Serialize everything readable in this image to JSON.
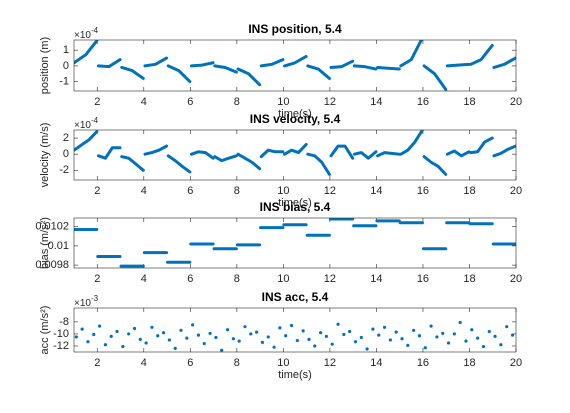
{
  "chart_data": [
    {
      "type": "line",
      "title": "INS position, 5.4",
      "xlabel": "time(s)",
      "ylabel": "position (m)",
      "multiplier": {
        "base": "×10",
        "power": "-4"
      },
      "color": "#0072bd",
      "xlim": [
        1,
        20
      ],
      "xticks": [
        2,
        4,
        6,
        8,
        10,
        12,
        14,
        16,
        18,
        20
      ],
      "ylim": [
        -1.6,
        1.65
      ],
      "yticks": [
        -1,
        0,
        1
      ],
      "x": [
        1,
        1.5,
        1.98,
        1.99,
        2.05,
        2.5,
        2.98,
        2.99,
        3.05,
        3.5,
        3.98,
        3.99,
        4.05,
        4.5,
        4.98,
        4.99,
        5.05,
        5.5,
        5.98,
        5.99,
        6.05,
        6.5,
        6.98,
        6.99,
        7.05,
        7.5,
        7.98,
        7.99,
        8.05,
        8.5,
        8.98,
        8.99,
        9.05,
        9.5,
        9.98,
        9.99,
        10.05,
        10.5,
        10.98,
        10.99,
        11.05,
        11.5,
        11.98,
        11.99,
        12.05,
        12.5,
        12.98,
        12.99,
        13.05,
        13.5,
        13.98,
        13.99,
        14.05,
        14.5,
        14.98,
        14.99,
        15.05,
        15.5,
        15.98,
        15.99,
        16.05,
        16.5,
        16.98,
        16.99,
        17.05,
        17.5,
        17.98,
        17.99,
        18.05,
        18.5,
        18.98,
        18.99,
        19.05,
        19.5,
        19.98
      ],
      "values": [
        0.2,
        0.7,
        1.6,
        null,
        0,
        -0.05,
        0.4,
        null,
        -0.1,
        -0.3,
        -0.8,
        null,
        0,
        0.1,
        0.5,
        null,
        0,
        -0.3,
        -1.0,
        null,
        0,
        0.05,
        0.2,
        null,
        0,
        -0.1,
        -0.4,
        null,
        -0.2,
        -0.5,
        -1.2,
        null,
        0,
        0.1,
        0.4,
        null,
        0,
        0.2,
        0.6,
        null,
        0,
        -0.2,
        -0.8,
        null,
        -0.1,
        -0.05,
        0.3,
        null,
        0,
        -0.05,
        -0.2,
        null,
        -0.1,
        -0.15,
        -0.2,
        null,
        0,
        0.4,
        1.8,
        null,
        0,
        -0.5,
        -1.5,
        null,
        0,
        0.05,
        0.1,
        null,
        0.1,
        0.4,
        1.3,
        null,
        -0.1,
        0.1,
        0.5
      ]
    },
    {
      "type": "line",
      "title": "INS velocity, 5.4",
      "xlabel": "time(s)",
      "ylabel": "velocity (m/s)",
      "multiplier": {
        "base": "×10",
        "power": "-4"
      },
      "color": "#0072bd",
      "xlim": [
        1,
        20
      ],
      "xticks": [
        2,
        4,
        6,
        8,
        10,
        12,
        14,
        16,
        18,
        20
      ],
      "ylim": [
        -3.2,
        3
      ],
      "yticks": [
        -2,
        0,
        2
      ],
      "x": [
        1,
        1.35,
        1.65,
        1.98,
        1.99,
        2.05,
        2.35,
        2.65,
        2.98,
        2.99,
        3.05,
        3.35,
        3.65,
        3.98,
        3.99,
        4.05,
        4.35,
        4.65,
        4.98,
        4.99,
        5.05,
        5.35,
        5.65,
        5.98,
        5.99,
        6.05,
        6.35,
        6.65,
        6.98,
        6.99,
        7.05,
        7.35,
        7.65,
        7.98,
        7.99,
        8.05,
        8.35,
        8.65,
        8.98,
        8.99,
        9.05,
        9.35,
        9.65,
        9.98,
        9.99,
        10.05,
        10.35,
        10.65,
        10.98,
        10.99,
        11.05,
        11.35,
        11.65,
        11.98,
        11.99,
        12.05,
        12.35,
        12.65,
        12.98,
        12.99,
        13.05,
        13.35,
        13.65,
        13.98,
        13.99,
        14.05,
        14.35,
        14.65,
        14.98,
        14.99,
        15.05,
        15.35,
        15.65,
        15.98,
        15.99,
        16.05,
        16.35,
        16.65,
        16.98,
        16.99,
        17.05,
        17.35,
        17.65,
        17.98,
        17.99,
        18.05,
        18.35,
        18.65,
        18.98,
        18.99,
        19.05,
        19.35,
        19.65,
        19.98
      ],
      "values": [
        0.5,
        1.2,
        1.8,
        2.8,
        null,
        -0.2,
        -0.5,
        0.8,
        0.8,
        null,
        -0.3,
        -0.5,
        -1.2,
        -2,
        null,
        0,
        0.2,
        0.5,
        1,
        null,
        -0.2,
        -0.8,
        -1.5,
        -2.2,
        null,
        0,
        0.3,
        0.2,
        -0.5,
        null,
        -0.3,
        -0.8,
        -0.5,
        -0.2,
        null,
        0,
        -0.5,
        -1,
        -1.8,
        null,
        -0.3,
        0.5,
        0.3,
        0.3,
        null,
        0,
        0.5,
        0.2,
        1.2,
        null,
        0,
        -0.2,
        -1,
        -2.5,
        null,
        -0.2,
        1,
        1,
        -0.5,
        null,
        0,
        0.2,
        -0.5,
        0.3,
        null,
        -0.2,
        0.2,
        0.1,
        0,
        null,
        0,
        0.5,
        1.5,
        3,
        null,
        -0.3,
        -1,
        -1.5,
        -2.5,
        null,
        0,
        0.4,
        -0.2,
        0.3,
        null,
        0.2,
        0.3,
        1.5,
        2,
        null,
        -0.2,
        0.1,
        0.6,
        1
      ]
    },
    {
      "type": "line",
      "title": "INS bias, 5.4",
      "ylabel": "bias (m/s²)",
      "color": "#0072bd",
      "xlim": [
        1,
        20
      ],
      "xticks": [
        2,
        4,
        6,
        8,
        10,
        12,
        14,
        16,
        18,
        20
      ],
      "ylim": [
        0.00977,
        0.01029
      ],
      "yticks": [
        0.0098,
        0.01,
        0.0102
      ],
      "x": [
        1.02,
        1.98,
        1.99,
        2.02,
        2.98,
        2.99,
        3.02,
        3.98,
        3.99,
        4.02,
        4.98,
        4.99,
        5.02,
        5.98,
        5.99,
        6.02,
        6.98,
        6.99,
        7.02,
        7.98,
        7.99,
        8.02,
        8.98,
        8.99,
        9.02,
        9.98,
        9.99,
        10.02,
        10.98,
        10.99,
        11.02,
        11.98,
        11.99,
        12.02,
        12.98,
        12.99,
        13.02,
        13.98,
        13.99,
        14.02,
        14.98,
        14.99,
        15.02,
        15.98,
        15.99,
        16.02,
        16.98,
        16.99,
        17.02,
        17.98,
        17.99,
        18.02,
        18.98,
        18.99,
        19.02,
        19.98
      ],
      "values": [
        0.01017,
        0.01017,
        null,
        0.00989,
        0.00989,
        null,
        0.00979,
        0.00979,
        null,
        0.00993,
        0.00993,
        null,
        0.00983,
        0.00983,
        null,
        0.01002,
        0.01002,
        null,
        0.00997,
        0.00997,
        null,
        0.01001,
        0.01001,
        null,
        0.01019,
        0.01019,
        null,
        0.01022,
        0.01022,
        null,
        0.01011,
        0.01011,
        null,
        0.01028,
        0.01028,
        null,
        0.01021,
        0.01021,
        null,
        0.01026,
        0.01026,
        null,
        0.01024,
        0.01024,
        null,
        0.00997,
        0.00997,
        null,
        0.01024,
        0.01024,
        null,
        0.01023,
        0.01023,
        null,
        0.01002,
        0.01002
      ]
    },
    {
      "type": "scatter",
      "title": "INS acc, 5.4",
      "xlabel": "time(s)",
      "ylabel": "acc (m/s²)",
      "multiplier": {
        "base": "×10",
        "power": "-3"
      },
      "color": "#0072bd",
      "xlim": [
        1,
        20
      ],
      "xticks": [
        2,
        4,
        6,
        8,
        10,
        12,
        14,
        16,
        18,
        20
      ],
      "ylim": [
        -13,
        -5.7
      ],
      "yticks": [
        -12,
        -10,
        -8
      ],
      "x": [
        1.1,
        1.35,
        1.6,
        1.85,
        2.1,
        2.35,
        2.6,
        2.85,
        3.1,
        3.35,
        3.6,
        3.85,
        4.1,
        4.35,
        4.6,
        4.85,
        5.1,
        5.35,
        5.6,
        5.85,
        6.1,
        6.35,
        6.6,
        6.85,
        7.1,
        7.35,
        7.6,
        7.85,
        8.1,
        8.35,
        8.6,
        8.85,
        9.1,
        9.35,
        9.6,
        9.85,
        10.1,
        10.35,
        10.6,
        10.85,
        11.1,
        11.35,
        11.6,
        11.85,
        12.1,
        12.35,
        12.6,
        12.85,
        13.1,
        13.35,
        13.6,
        13.85,
        14.1,
        14.35,
        14.6,
        14.85,
        15.1,
        15.35,
        15.6,
        15.85,
        16.1,
        16.35,
        16.6,
        16.85,
        17.1,
        17.35,
        17.6,
        17.85,
        18.1,
        18.35,
        18.6,
        18.85,
        19.1,
        19.35,
        19.6,
        19.85
      ],
      "values": [
        -10.5,
        -9.2,
        -11.3,
        -10.1,
        -8.7,
        -11.8,
        -10.4,
        -9.6,
        -12.1,
        -10.0,
        -9.1,
        -10.9,
        -11.5,
        -8.9,
        -10.3,
        -9.8,
        -11.0,
        -12.4,
        -9.4,
        -10.7,
        -8.5,
        -10.2,
        -11.6,
        -9.9,
        -10.6,
        -12.7,
        -9.3,
        -10.8,
        -11.2,
        -8.8,
        -10.0,
        -9.7,
        -11.4,
        -10.5,
        -12.2,
        -9.0,
        -10.3,
        -8.6,
        -11.1,
        -9.5,
        -10.9,
        -12.0,
        -9.8,
        -10.4,
        -11.7,
        -8.4,
        -10.1,
        -9.6,
        -11.3,
        -10.6,
        -12.5,
        -9.2,
        -10.2,
        -8.9,
        -11.0,
        -9.7,
        -10.8,
        -11.9,
        -9.4,
        -10.3,
        -12.3,
        -8.7,
        -10.5,
        -9.9,
        -11.5,
        -10.0,
        -8.1,
        -11.2,
        -9.3,
        -10.7,
        -12.1,
        -9.6,
        -10.4,
        -11.8,
        -8.8,
        -10.2
      ]
    }
  ]
}
